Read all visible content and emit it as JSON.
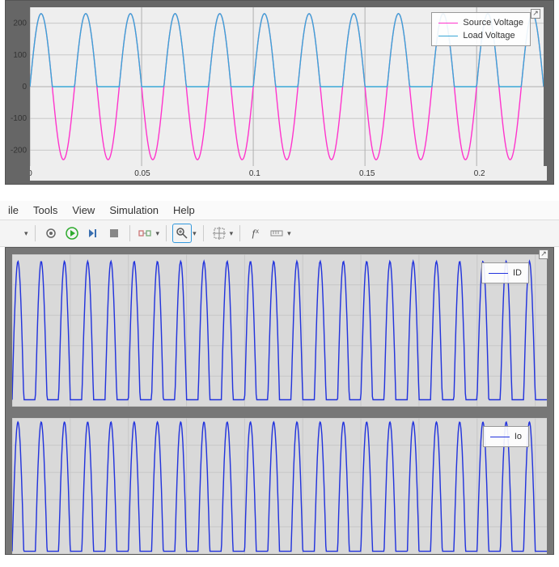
{
  "scope1": {
    "type": "line",
    "background_color": "#eeeeee",
    "frame_color": "#666666",
    "grid_color": "#c8c8c8",
    "grid_major_color": "#b0b0b0",
    "xlim": [
      0,
      0.23
    ],
    "xtick_step": 0.05,
    "xticks": [
      "0",
      "0.05",
      "0.1",
      "0.15",
      "0.2"
    ],
    "ylim": [
      -250,
      250
    ],
    "yticks": [
      -200,
      -100,
      0,
      100,
      200
    ],
    "series": [
      {
        "name": "Source Voltage",
        "color": "#ff33cc",
        "kind": "sine",
        "amp": 230,
        "freq_hz": 50,
        "width": 1.4
      },
      {
        "name": "Load Voltage",
        "color": "#3aa7d6",
        "kind": "halfsine",
        "amp": 230,
        "freq_hz": 50,
        "width": 1.4
      }
    ],
    "legend": {
      "position": "top-right"
    },
    "axis_fontsize": 10
  },
  "menubar": {
    "items": [
      "ile",
      "Tools",
      "View",
      "Simulation",
      "Help"
    ]
  },
  "toolbar": {
    "icons": [
      {
        "name": "history-icon",
        "glyph": "dropdown"
      },
      {
        "name": "divider"
      },
      {
        "name": "target-icon",
        "glyph": "eye"
      },
      {
        "name": "run-icon",
        "glyph": "play"
      },
      {
        "name": "step-icon",
        "glyph": "step"
      },
      {
        "name": "stop-icon",
        "glyph": "stop"
      },
      {
        "name": "divider"
      },
      {
        "name": "signal-icon",
        "glyph": "signal",
        "dropdown": true
      },
      {
        "name": "divider"
      },
      {
        "name": "zoom-icon",
        "glyph": "zoom",
        "dropdown": true,
        "active": true
      },
      {
        "name": "divider"
      },
      {
        "name": "cursor-icon",
        "glyph": "cursor",
        "dropdown": true
      },
      {
        "name": "divider"
      },
      {
        "name": "fx-icon",
        "glyph": "fx"
      },
      {
        "name": "measure-icon",
        "glyph": "ruler",
        "dropdown": true
      }
    ],
    "run_color": "#2eab2e",
    "active_border": "#3399dd"
  },
  "scope2": {
    "frame_color": "#777777",
    "background_color": "#d9d9d9",
    "grid_color": "#bcbcbc",
    "plots": [
      {
        "type": "line",
        "legend_label": "ID",
        "series_color": "#2233dd",
        "xlim": [
          0,
          0.46
        ],
        "freq_hz": 50,
        "amp": 1,
        "kind": "halfsine",
        "line_width": 1.2,
        "legend_line_color": "#2233dd"
      },
      {
        "type": "line",
        "legend_label": "Io",
        "series_color": "#2233dd",
        "xlim": [
          0,
          0.46
        ],
        "freq_hz": 50,
        "amp": 1,
        "kind": "rectpulse",
        "line_width": 1.6,
        "legend_line_color": "#2233dd"
      }
    ]
  },
  "colors": {
    "menubar_bg": "#fafafa",
    "toolbar_bg": "#f4f4f4"
  },
  "icon_box_glyph": "↗"
}
